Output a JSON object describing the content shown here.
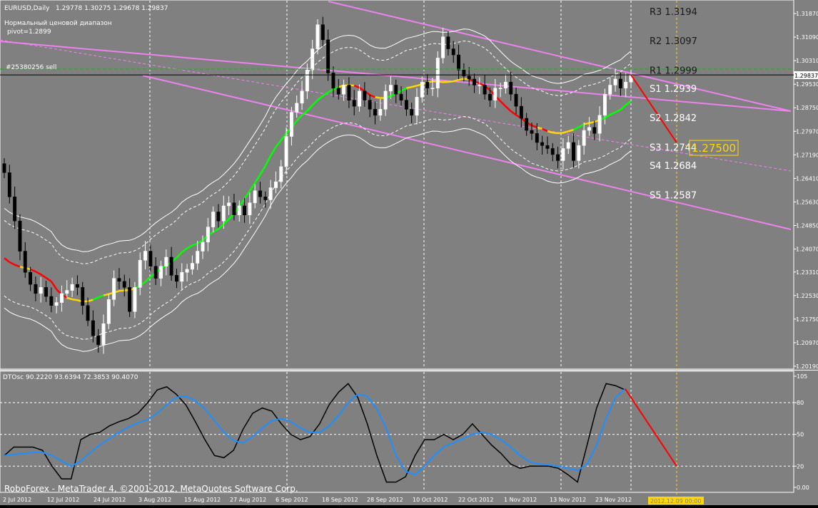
{
  "header": {
    "symbol": "EURUSD,Daily",
    "ohlc": "1.29778 1.30275 1.29678 1.29837",
    "indicator_name": "Нормальный ценовой диапазон",
    "pivot": "pivot=1.2899",
    "order_label": "#25380256 sell"
  },
  "copyright": "RoboForex - MetaTrader 4, ©2001-2012, MetaQuotes Software Corp.",
  "oscillator": {
    "title": "DTOsc 90.2220 93.6394 72.3853 90.4070",
    "ticks": [
      "105",
      "80",
      "50",
      "20",
      "0.00"
    ]
  },
  "price_ticks": [
    "1.31870",
    "1.31090",
    "1.30310",
    "1.29530",
    "1.28750",
    "1.27970",
    "1.27190",
    "1.26410",
    "1.25630",
    "1.24850",
    "1.24070",
    "1.23310",
    "1.22530",
    "1.21750",
    "1.20970",
    "1.20190"
  ],
  "current_price": "1.29837",
  "target_price": "1.27500",
  "date_labels": [
    "2 Jul 2012",
    "12 Jul 2012",
    "24 Jul 2012",
    "3 Aug 2012",
    "15 Aug 2012",
    "27 Aug 2012",
    "6 Sep 2012",
    "18 Sep 2012",
    "28 Sep 2012",
    "10 Oct 2012",
    "22 Oct 2012",
    "1 Nov 2012",
    "13 Nov 2012",
    "23 Nov 2012"
  ],
  "cursor_date": "2012.12.09 00:00",
  "pivot_levels": [
    {
      "label": "R3",
      "value": "1.3194"
    },
    {
      "label": "R2",
      "value": "1.3097"
    },
    {
      "label": "R1",
      "value": "1.2999"
    },
    {
      "label": "S1",
      "value": "1.2939"
    },
    {
      "label": "S2",
      "value": "1.2842"
    },
    {
      "label": "S3",
      "value": "1.2744"
    },
    {
      "label": "S4",
      "value": "1.2684"
    },
    {
      "label": "S5",
      "value": "1.2587"
    }
  ],
  "colors": {
    "background": "#808080",
    "bull": "#ffffff",
    "bear": "#000000",
    "channel": "#ee82ee",
    "ma_up": "#00ff00",
    "ma_flat": "#ffd700",
    "ma_down": "#ff0000",
    "osc_fast": "#000000",
    "osc_slow": "#1e90ff",
    "target_box": "#ffd700"
  },
  "chart_data": [
    {
      "type": "candlestick",
      "title": "EURUSD,Daily",
      "ylim": [
        1.2019,
        1.32
      ],
      "x_start": "2 Jul 2012",
      "x_end": "30 Nov 2012",
      "ohlc_last": {
        "open": 1.29778,
        "high": 1.30275,
        "low": 1.29678,
        "close": 1.29837
      },
      "close_path": [
        1.266,
        1.258,
        1.25,
        1.24,
        1.233,
        1.229,
        1.226,
        1.228,
        1.225,
        1.222,
        1.223,
        1.226,
        1.227,
        1.229,
        1.228,
        1.222,
        1.217,
        1.212,
        1.209,
        1.216,
        1.224,
        1.231,
        1.23,
        1.228,
        1.22,
        1.228,
        1.237,
        1.24,
        1.235,
        1.231,
        1.235,
        1.238,
        1.232,
        1.23,
        1.233,
        1.234,
        1.236,
        1.24,
        1.243,
        1.248,
        1.253,
        1.25,
        1.255,
        1.256,
        1.252,
        1.255,
        1.252,
        1.256,
        1.26,
        1.258,
        1.257,
        1.261,
        1.263,
        1.268,
        1.278,
        1.286,
        1.289,
        1.293,
        1.3,
        1.307,
        1.315,
        1.31,
        1.299,
        1.294,
        1.292,
        1.295,
        1.29,
        1.288,
        1.293,
        1.29,
        1.287,
        1.285,
        1.287,
        1.293,
        1.295,
        1.292,
        1.29,
        1.287,
        1.285,
        1.291,
        1.296,
        1.294,
        1.294,
        1.304,
        1.311,
        1.307,
        1.305,
        1.3,
        1.298,
        1.297,
        1.295,
        1.295,
        1.292,
        1.29,
        1.294,
        1.294,
        1.296,
        1.292,
        1.288,
        1.284,
        1.28,
        1.279,
        1.276,
        1.275,
        1.274,
        1.272,
        1.27,
        1.274,
        1.276,
        1.27,
        1.275,
        1.28,
        1.281,
        1.279,
        1.285,
        1.292,
        1.295,
        1.297,
        1.294,
        1.296,
        1.2984
      ]
    },
    {
      "type": "line",
      "title": "DTOsc 90.2220 93.6394 72.3853 90.4070",
      "ylim": [
        0,
        105
      ],
      "series": [
        {
          "values": [
            30,
            38,
            38,
            38,
            35,
            20,
            8,
            8,
            45,
            50,
            52,
            58,
            62,
            65,
            70,
            80,
            92,
            95,
            88,
            78,
            62,
            45,
            30,
            28,
            35,
            55,
            70,
            75,
            72,
            60,
            50,
            45,
            48,
            60,
            78,
            90,
            98,
            85,
            60,
            30,
            5,
            5,
            10,
            30,
            45,
            45,
            50,
            45,
            50,
            60,
            50,
            40,
            32,
            22,
            18,
            20,
            20,
            20,
            18,
            12,
            5,
            40,
            75,
            98,
            96,
            92
          ]
        },
        {
          "values": [
            30,
            31,
            32,
            33,
            33,
            30,
            25,
            20,
            25,
            33,
            40,
            46,
            52,
            57,
            61,
            64,
            70,
            78,
            85,
            86,
            82,
            74,
            63,
            52,
            44,
            42,
            48,
            56,
            63,
            65,
            62,
            56,
            52,
            52,
            58,
            68,
            80,
            88,
            86,
            74,
            55,
            30,
            15,
            12,
            20,
            30,
            38,
            42,
            46,
            50,
            52,
            50,
            45,
            38,
            30,
            24,
            22,
            21,
            20,
            18,
            16,
            22,
            40,
            65,
            85,
            93
          ]
        }
      ]
    }
  ]
}
